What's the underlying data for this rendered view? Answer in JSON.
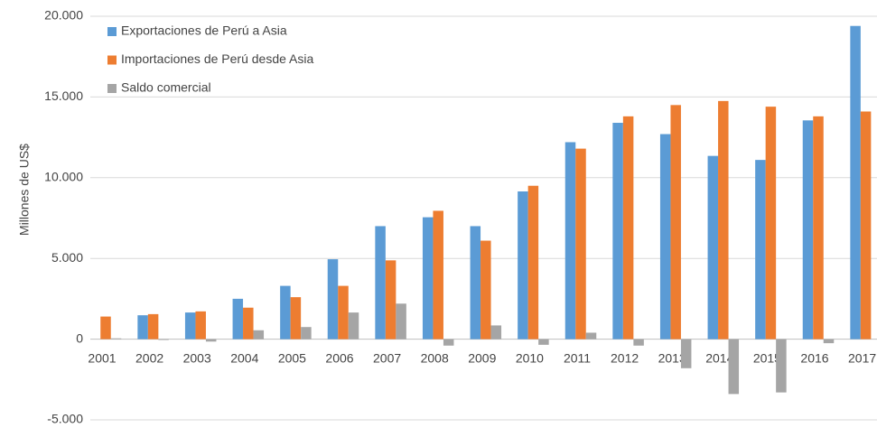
{
  "chart_data": {
    "type": "bar",
    "y_label": "Millones de US$",
    "categories": [
      "2001",
      "2002",
      "2003",
      "2004",
      "2005",
      "2006",
      "2007",
      "2008",
      "2009",
      "2010",
      "2011",
      "2012",
      "2013",
      "2014",
      "2015",
      "2016",
      "2017"
    ],
    "series": [
      {
        "name": "Exportaciones de Perú a Asia",
        "color": "#5b9bd5",
        "values": [
          null,
          1480,
          1650,
          2500,
          3300,
          4950,
          7000,
          7550,
          7000,
          9150,
          12200,
          13400,
          12700,
          11350,
          11100,
          13550,
          19400
        ]
      },
      {
        "name": "Importaciones de Perú desde Asia",
        "color": "#ed7d31",
        "values": [
          1400,
          1550,
          1720,
          1950,
          2600,
          3300,
          4880,
          7950,
          6100,
          9500,
          11800,
          13800,
          14500,
          14750,
          14400,
          13800,
          14100
        ]
      },
      {
        "name": "Saldo comercial",
        "color": "#a5a5a5",
        "values": [
          50,
          -50,
          -150,
          550,
          750,
          1650,
          2200,
          -400,
          850,
          -350,
          400,
          -400,
          -1800,
          -3400,
          -3300,
          -250,
          null
        ]
      }
    ],
    "ylim": [
      -5000,
      20000
    ],
    "yticks": [
      {
        "value": -5000,
        "label": "-5.000"
      },
      0,
      {
        "value": 5000,
        "label": "5.000"
      },
      {
        "value": 10000,
        "label": "10.000"
      },
      {
        "value": 15000,
        "label": "15.000"
      },
      {
        "value": 20000,
        "label": "20.000"
      }
    ],
    "grid": true,
    "legend": "top-left"
  }
}
